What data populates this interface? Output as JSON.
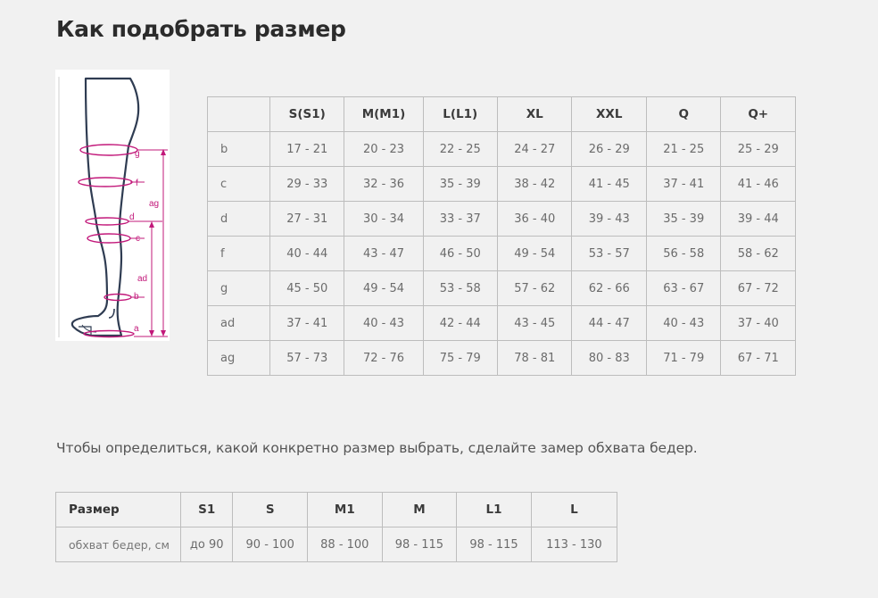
{
  "title": "Как подобрать размер",
  "diagram_labels": {
    "g": "g",
    "f": "f",
    "d": "d",
    "c": "c",
    "b": "b",
    "a": "a",
    "ag": "ag",
    "ad": "ad"
  },
  "main_table": {
    "headers": [
      "",
      "S(S1)",
      "M(M1)",
      "L(L1)",
      "XL",
      "XXL",
      "Q",
      "Q+"
    ],
    "rows": [
      {
        "label": "b",
        "values": [
          "17 - 21",
          "20 - 23",
          "22 - 25",
          "24 - 27",
          "26 - 29",
          "21 - 25",
          "25 - 29"
        ]
      },
      {
        "label": "c",
        "values": [
          "29 - 33",
          "32 - 36",
          "35 - 39",
          "38 - 42",
          "41 - 45",
          "37 - 41",
          "41 - 46"
        ]
      },
      {
        "label": "d",
        "values": [
          "27 - 31",
          "30 - 34",
          "33 - 37",
          "36 - 40",
          "39 - 43",
          "35 - 39",
          "39 - 44"
        ]
      },
      {
        "label": "f",
        "values": [
          "40 - 44",
          "43 - 47",
          "46 - 50",
          "49 - 54",
          "53 - 57",
          "56 - 58",
          "58 - 62"
        ]
      },
      {
        "label": "g",
        "values": [
          "45 - 50",
          "49 - 54",
          "53 - 58",
          "57 - 62",
          "62 - 66",
          "63 - 67",
          "67 - 72"
        ]
      },
      {
        "label": "ad",
        "values": [
          "37 - 41",
          "40 - 43",
          "42 - 44",
          "43 - 45",
          "44 - 47",
          "40 - 43",
          "37 - 40"
        ]
      },
      {
        "label": "ag",
        "values": [
          "57 - 73",
          "72 - 76",
          "75 - 79",
          "78 - 81",
          "80 - 83",
          "71 - 79",
          "67 - 71"
        ]
      }
    ]
  },
  "note": "Чтобы определиться, какой конкретно размер выбрать, сделайте замер обхвата бедер.",
  "hip_table": {
    "headers": [
      "Размер",
      "S1",
      "S",
      "M1",
      "M",
      "L1",
      "L"
    ],
    "row": {
      "label": "обхват бедер, см",
      "values": [
        "до 90",
        "90 - 100",
        "88 - 100",
        "98 - 115",
        "98 - 115",
        "113 - 130"
      ]
    }
  },
  "colors": {
    "accent": "#c2187a",
    "outline": "#2f3c52",
    "page_bg": "#f1f1f1"
  }
}
